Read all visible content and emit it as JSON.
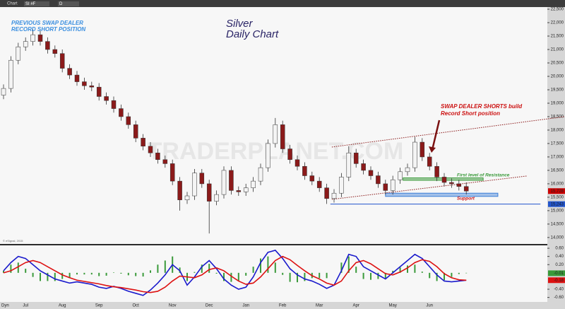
{
  "ui": {
    "window_title": "Chart",
    "symbol": "SI #F",
    "interval": "D",
    "corner": "Dyn",
    "copyright": "© eSignal, 2015",
    "watermark": "TRADERPLANET.COM"
  },
  "chart_data": [
    {
      "type": "candlestick",
      "title": "Silver",
      "subtitle": "Daily Chart",
      "annotations": {
        "left_1": "PREVIOUS SWAP DEALER",
        "left_2": "RECORD SHORT POSITION",
        "right_1": "SWAP DEALER SHORTS build",
        "right_2": "Record Short position",
        "resistance": "First level of Resistance",
        "support": "Support"
      },
      "ylim": [
        13760,
        22580
      ],
      "yticks": [
        {
          "value": 22500,
          "label": "22,500"
        },
        {
          "value": 22000,
          "label": "22,000"
        },
        {
          "value": 21500,
          "label": "21,500"
        },
        {
          "value": 21000,
          "label": "21,000"
        },
        {
          "value": 20500,
          "label": "20,500"
        },
        {
          "value": 20000,
          "label": "20,000"
        },
        {
          "value": 19500,
          "label": "19,500"
        },
        {
          "value": 19000,
          "label": "19,000"
        },
        {
          "value": 18500,
          "label": "18,500"
        },
        {
          "value": 18000,
          "label": "18,000"
        },
        {
          "value": 17500,
          "label": "17,500"
        },
        {
          "value": 17000,
          "label": "17,000"
        },
        {
          "value": 16500,
          "label": "16,500"
        },
        {
          "value": 16000,
          "label": "16,000"
        },
        {
          "value": 15500,
          "label": "15,500"
        },
        {
          "value": 15000,
          "label": "15,000"
        },
        {
          "value": 14500,
          "label": "14,500"
        },
        {
          "value": 14000,
          "label": "14,000"
        }
      ],
      "up_color": "#f4f4f4",
      "down_color": "#8b1a1a",
      "open": [
        19300,
        19550,
        20600,
        21100,
        21300,
        21550,
        21300,
        21000,
        20850,
        20300,
        20050,
        19800,
        19650,
        19600,
        19250,
        19100,
        18800,
        18500,
        18200,
        17700,
        17400,
        17150,
        16900,
        16750,
        16100,
        15400,
        15550,
        16400,
        16000,
        15350,
        15600,
        16500,
        15750,
        15700,
        15850,
        16100,
        16600,
        17500,
        18200,
        17300,
        16900,
        16650,
        16300,
        16100,
        15850,
        15450,
        15650,
        16250,
        17150,
        16750,
        16500,
        16300,
        16000,
        15750,
        16150,
        16450,
        16600,
        17550,
        17000,
        16650,
        16250,
        16050,
        16000,
        15900
      ],
      "high": [
        19700,
        20750,
        21250,
        21450,
        21750,
        21700,
        21450,
        21150,
        21000,
        20450,
        20200,
        19950,
        19800,
        19750,
        19400,
        19250,
        18950,
        18650,
        18350,
        17850,
        17550,
        17300,
        17050,
        16900,
        16250,
        15700,
        16550,
        16550,
        16150,
        15750,
        16650,
        16650,
        15900,
        16000,
        16250,
        16750,
        17650,
        18450,
        18350,
        17450,
        17050,
        16800,
        16450,
        16250,
        16000,
        15800,
        16400,
        17400,
        17300,
        16900,
        16650,
        16450,
        16150,
        16300,
        16600,
        16750,
        17750,
        17700,
        17150,
        16800,
        16400,
        16200,
        16150,
        16050
      ],
      "low": [
        19150,
        19400,
        20450,
        20950,
        21150,
        21150,
        20850,
        20700,
        20150,
        19900,
        19650,
        19500,
        19450,
        19100,
        18950,
        18650,
        18350,
        18050,
        17550,
        17250,
        17000,
        16750,
        16600,
        15950,
        15000,
        15250,
        15400,
        15850,
        14150,
        15200,
        15450,
        15600,
        15550,
        15550,
        15700,
        15950,
        16450,
        17350,
        17150,
        16750,
        16500,
        16150,
        15950,
        15700,
        15250,
        15300,
        15500,
        16100,
        16600,
        16350,
        16150,
        15850,
        15600,
        15600,
        16000,
        16300,
        16450,
        16850,
        16500,
        16100,
        15900,
        15850,
        15750,
        15600
      ],
      "close": [
        19550,
        20600,
        21100,
        21300,
        21550,
        21300,
        21000,
        20850,
        20300,
        20050,
        19800,
        19650,
        19600,
        19250,
        19100,
        18800,
        18500,
        18200,
        17700,
        17400,
        17150,
        16900,
        16750,
        16100,
        15400,
        15550,
        16400,
        16000,
        15350,
        15600,
        16500,
        15750,
        15700,
        15850,
        16100,
        16600,
        17500,
        18200,
        17300,
        16900,
        16650,
        16300,
        16100,
        15850,
        15450,
        15650,
        16250,
        17150,
        16750,
        16500,
        16300,
        16000,
        15750,
        16150,
        16450,
        16600,
        17550,
        17000,
        16650,
        16250,
        16050,
        16000,
        15900,
        15728
      ],
      "trendlines": [
        {
          "x": [
            44.7,
            76.4
          ],
          "y": [
            17368,
            18500
          ],
          "color": "#8b1a1a",
          "dash": true
        },
        {
          "x": [
            44.7,
            71.2
          ],
          "y": [
            15421,
            16289
          ],
          "color": "#8b1a1a",
          "dash": true
        },
        {
          "x": [
            44.5,
            73.1
          ],
          "y": [
            15243,
            15243
          ],
          "color": "#2255cc",
          "dash": false
        }
      ],
      "zones": [
        {
          "x": [
            54.4,
            65.3
          ],
          "y": [
            16130,
            16220
          ],
          "color": "#3a9a3a"
        },
        {
          "x": [
            52,
            67.3
          ],
          "y": [
            15530,
            15650
          ],
          "color": "#3b7fd8"
        }
      ],
      "last_labels": [
        {
          "value": 15728,
          "label": "15,728",
          "color": "#cc0000"
        },
        {
          "value": 15243,
          "label": "15,243",
          "color": "#2255cc"
        }
      ]
    },
    {
      "type": "line",
      "categories": [
        null,
        null,
        null,
        "Jul",
        null,
        null,
        null,
        null,
        "Aug",
        null,
        null,
        null,
        null,
        "Sep",
        null,
        null,
        null,
        null,
        "Oct",
        null,
        null,
        null,
        null,
        "Nov",
        null,
        null,
        null,
        null,
        "Dec",
        null,
        null,
        null,
        null,
        "Jan",
        null,
        null,
        null,
        null,
        "Feb",
        null,
        null,
        null,
        null,
        "Mar",
        null,
        null,
        null,
        null,
        "Apr",
        null,
        null,
        null,
        null,
        "May",
        null,
        null,
        null,
        null,
        "Jun",
        null,
        null,
        null,
        null,
        null
      ],
      "ylim": [
        -0.71,
        0.67
      ],
      "yticks": [
        {
          "value": 0.6,
          "label": "0.60"
        },
        {
          "value": 0.4,
          "label": "0.40"
        },
        {
          "value": 0.2,
          "label": "0.20"
        },
        {
          "value": -0.4,
          "label": "-0.40"
        },
        {
          "value": -0.6,
          "label": "-0.60"
        }
      ],
      "series": [
        {
          "color": "#1a1acc",
          "values": [
            0.05,
            0.25,
            0.4,
            0.35,
            0.2,
            0.05,
            -0.05,
            -0.15,
            -0.2,
            -0.25,
            -0.22,
            -0.25,
            -0.28,
            -0.35,
            -0.38,
            -0.33,
            -0.38,
            -0.45,
            -0.5,
            -0.55,
            -0.42,
            -0.25,
            -0.05,
            0.2,
            0.05,
            -0.3,
            -0.1,
            0.15,
            0.3,
            0.1,
            -0.15,
            -0.3,
            -0.4,
            -0.35,
            -0.1,
            0.25,
            0.5,
            0.55,
            0.35,
            0.1,
            -0.05,
            -0.15,
            -0.2,
            -0.28,
            -0.38,
            -0.3,
            0.05,
            0.45,
            0.4,
            0.15,
            0.05,
            -0.05,
            -0.15,
            0,
            0.15,
            0.3,
            0.45,
            0.35,
            0.15,
            -0.05,
            -0.2,
            -0.22,
            -0.2,
            -0.18
          ]
        },
        {
          "color": "#dd1111",
          "values": [
            0,
            0.05,
            0.15,
            0.25,
            0.3,
            0.25,
            0.15,
            0.05,
            -0.05,
            -0.12,
            -0.18,
            -0.21,
            -0.24,
            -0.27,
            -0.31,
            -0.34,
            -0.36,
            -0.39,
            -0.42,
            -0.46,
            -0.48,
            -0.45,
            -0.35,
            -0.2,
            -0.08,
            -0.1,
            -0.12,
            -0.05,
            0.08,
            0.12,
            0.05,
            -0.08,
            -0.2,
            -0.28,
            -0.25,
            -0.1,
            0.1,
            0.3,
            0.4,
            0.32,
            0.18,
            0.05,
            -0.07,
            -0.15,
            -0.25,
            -0.3,
            -0.2,
            0.05,
            0.25,
            0.3,
            0.22,
            0.1,
            -0.02,
            -0.05,
            0.02,
            0.12,
            0.25,
            0.32,
            0.28,
            0.15,
            -0.02,
            -0.12,
            -0.17,
            -0.18
          ]
        }
      ],
      "histogram": {
        "color": "#3a9a3a",
        "values": [
          0.05,
          0.2,
          0.25,
          0.1,
          -0.1,
          -0.2,
          -0.2,
          -0.2,
          -0.15,
          -0.13,
          -0.04,
          -0.04,
          -0.04,
          -0.08,
          -0.07,
          0.01,
          -0.02,
          -0.06,
          -0.08,
          -0.09,
          0.06,
          0.2,
          0.3,
          0.4,
          0.13,
          -0.2,
          0.02,
          0.2,
          0.22,
          -0.02,
          -0.2,
          -0.22,
          -0.2,
          -0.07,
          0.15,
          0.35,
          0.4,
          0.25,
          -0.05,
          -0.22,
          -0.23,
          -0.2,
          -0.13,
          -0.13,
          -0.13,
          0,
          0.25,
          0.4,
          0.15,
          -0.15,
          -0.17,
          -0.15,
          -0.13,
          0.05,
          0.13,
          0.18,
          0.2,
          0.03,
          -0.13,
          -0.2,
          -0.18,
          -0.1,
          -0.03,
          -0.01
        ]
      },
      "last_labels": [
        {
          "value": -0.01,
          "label": "-0.01",
          "color": "#3a9a3a"
        },
        {
          "value": -0.18,
          "label": "-0.18",
          "color": "#dd1111"
        }
      ]
    }
  ]
}
